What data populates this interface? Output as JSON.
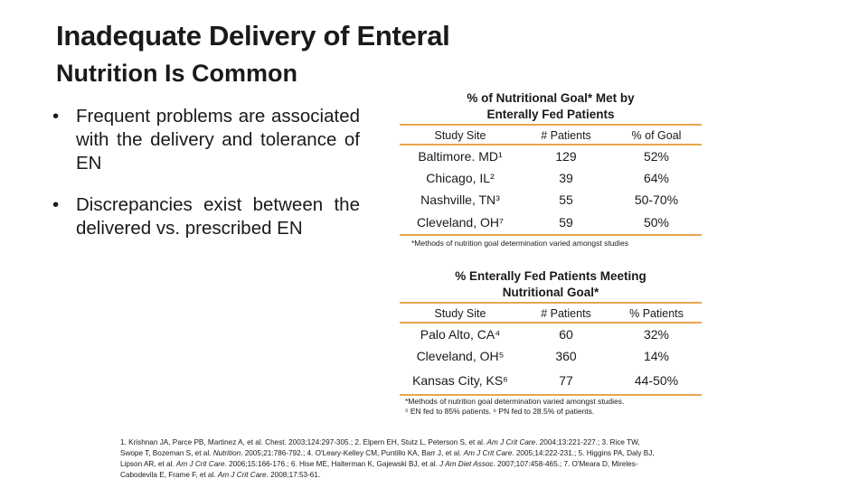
{
  "title": {
    "line1": "Inadequate Delivery of Enteral",
    "line2": "Nutrition Is Common"
  },
  "bullets": [
    {
      "symbol": "•",
      "text": "Frequent problems are associated with the delivery and tolerance of EN"
    },
    {
      "symbol": "•",
      "text": "Discrepancies exist between the delivered vs. prescribed EN"
    }
  ],
  "table1": {
    "title_line1": "% of Nutritional Goal* Met by",
    "title_line2": "Enterally Fed Patients",
    "headers": [
      "Study Site",
      "# Patients",
      "% of Goal"
    ],
    "rows": [
      [
        "Baltimore. MD¹",
        "129",
        "52%"
      ],
      [
        "Chicago, IL²",
        "39",
        "64%"
      ],
      [
        "Nashville, TN³",
        "55",
        "50-70%"
      ],
      [
        "Cleveland, OH⁷",
        "59",
        "50%"
      ]
    ],
    "footnote": "*Methods of nutrition goal determination varied amongst studies"
  },
  "table2": {
    "title_line1": "% Enterally Fed Patients Meeting",
    "title_line2": "Nutritional Goal*",
    "headers": [
      "Study Site",
      "# Patients",
      "% Patients"
    ],
    "rows": [
      [
        "Palo Alto, CA⁴",
        "60",
        "32%"
      ],
      [
        "Cleveland, OH⁵",
        "360",
        "14%"
      ],
      [
        "Kansas City, KS⁶",
        "77",
        "44-50%"
      ]
    ],
    "footnote_line1": "*Methods of nutrition goal determination varied amongst studies.",
    "footnote_line2": "⁵ EN fed to 85% patients. ⁶ PN fed to 28.5% of patients."
  },
  "references": {
    "r1a": "1. Krishnan JA, Parce PB, Martinez A, et al. Chest. 2003;124:297-305.; 2. Elpern EH, Stutz L, Peterson S, et al. ",
    "r1b": "Am J Crit Care",
    "r1c": ". 2004;13:221-227.; 3. Rice TW,",
    "r2a": "Swope T, Bozeman S, et al. ",
    "r2b": "Nutrition",
    "r2c": ". 2005;21:786-792.; 4. O'Leary-Kelley CM, Puntillo KA, Barr J, et al. ",
    "r2d": "Am J Crit Care",
    "r2e": ". 2005;14:222-231.; 5. Higgins PA, Daly BJ,",
    "r3a": "Lipson AR, et al. ",
    "r3b": "Am J Crit Care",
    "r3c": ". 2006;15:166-176.; 6. Hise ME, Halterman K, Gajewski BJ, et al. ",
    "r3d": "J Am Diet Assoc",
    "r3e": ". 2007;107:458-465.; 7. O'Meara D, Mireles-",
    "r4a": "Cabodevila E, Frame F, et al. ",
    "r4b": "Am J Crit Care",
    "r4c": ". 2008;17:53-61."
  }
}
